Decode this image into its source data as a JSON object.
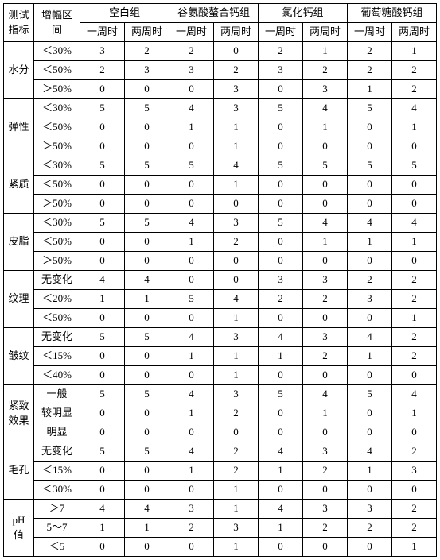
{
  "headers": {
    "indicator": "测试\n指标",
    "range": "增幅区\n间",
    "groups": [
      "空白组",
      "谷氨酸螯合钙组",
      "氯化钙组",
      "葡萄糖酸钙组"
    ],
    "subcols": [
      "一周时",
      "两周时"
    ]
  },
  "sections": [
    {
      "name": "水分",
      "rows": [
        {
          "range": "＜30%",
          "values": [
            3,
            2,
            2,
            0,
            2,
            1,
            2,
            1
          ]
        },
        {
          "range": "＜50%",
          "values": [
            2,
            3,
            3,
            2,
            3,
            2,
            2,
            2
          ]
        },
        {
          "range": "＞50%",
          "values": [
            0,
            0,
            0,
            3,
            0,
            3,
            1,
            2
          ]
        }
      ]
    },
    {
      "name": "弹性",
      "rows": [
        {
          "range": "＜30%",
          "values": [
            5,
            5,
            4,
            3,
            5,
            4,
            5,
            4
          ]
        },
        {
          "range": "＜50%",
          "values": [
            0,
            0,
            1,
            1,
            0,
            1,
            0,
            1
          ]
        },
        {
          "range": "＞50%",
          "values": [
            0,
            0,
            0,
            1,
            0,
            0,
            0,
            0
          ]
        }
      ]
    },
    {
      "name": "紧质",
      "rows": [
        {
          "range": "＜30%",
          "values": [
            5,
            5,
            5,
            4,
            5,
            5,
            5,
            5
          ]
        },
        {
          "range": "＜50%",
          "values": [
            0,
            0,
            0,
            1,
            0,
            0,
            0,
            0
          ]
        },
        {
          "range": "＞50%",
          "values": [
            0,
            0,
            0,
            0,
            0,
            0,
            0,
            0
          ]
        }
      ]
    },
    {
      "name": "皮脂",
      "rows": [
        {
          "range": "＜30%",
          "values": [
            5,
            5,
            4,
            3,
            5,
            4,
            4,
            4
          ]
        },
        {
          "range": "＜50%",
          "values": [
            0,
            0,
            1,
            2,
            0,
            1,
            1,
            1
          ]
        },
        {
          "range": "＞50%",
          "values": [
            0,
            0,
            0,
            0,
            0,
            0,
            0,
            0
          ]
        }
      ]
    },
    {
      "name": "纹理",
      "rows": [
        {
          "range": "无变化",
          "values": [
            4,
            4,
            0,
            0,
            3,
            3,
            2,
            2
          ]
        },
        {
          "range": "＜20%",
          "values": [
            1,
            1,
            5,
            4,
            2,
            2,
            3,
            2
          ]
        },
        {
          "range": "＜50%",
          "values": [
            0,
            0,
            0,
            1,
            0,
            0,
            0,
            1
          ]
        }
      ]
    },
    {
      "name": "皱纹",
      "rows": [
        {
          "range": "无变化",
          "values": [
            5,
            5,
            4,
            3,
            4,
            3,
            4,
            2
          ]
        },
        {
          "range": "＜15%",
          "values": [
            0,
            0,
            1,
            1,
            1,
            2,
            1,
            2
          ]
        },
        {
          "range": "＜40%",
          "values": [
            0,
            0,
            0,
            1,
            0,
            0,
            0,
            0
          ]
        }
      ]
    },
    {
      "name": "紧致\n效果",
      "rows": [
        {
          "range": "一般",
          "values": [
            5,
            5,
            4,
            3,
            5,
            4,
            5,
            4
          ]
        },
        {
          "range": "较明显",
          "values": [
            0,
            0,
            1,
            2,
            0,
            1,
            0,
            1
          ]
        },
        {
          "range": "明显",
          "values": [
            0,
            0,
            0,
            0,
            0,
            0,
            0,
            0
          ]
        }
      ]
    },
    {
      "name": "毛孔",
      "rows": [
        {
          "range": "无变化",
          "values": [
            5,
            5,
            4,
            2,
            4,
            3,
            4,
            2
          ]
        },
        {
          "range": "＜15%",
          "values": [
            0,
            0,
            1,
            2,
            1,
            2,
            1,
            3
          ]
        },
        {
          "range": "＜30%",
          "values": [
            0,
            0,
            0,
            1,
            0,
            0,
            0,
            0
          ]
        }
      ]
    },
    {
      "name": "pH\n值",
      "rows": [
        {
          "range": "＞7",
          "values": [
            4,
            4,
            3,
            1,
            4,
            3,
            3,
            2
          ]
        },
        {
          "range": "5～7",
          "values": [
            1,
            1,
            2,
            3,
            1,
            2,
            2,
            2
          ]
        },
        {
          "range": "＜5",
          "values": [
            0,
            0,
            0,
            1,
            0,
            0,
            0,
            1
          ]
        }
      ]
    }
  ]
}
